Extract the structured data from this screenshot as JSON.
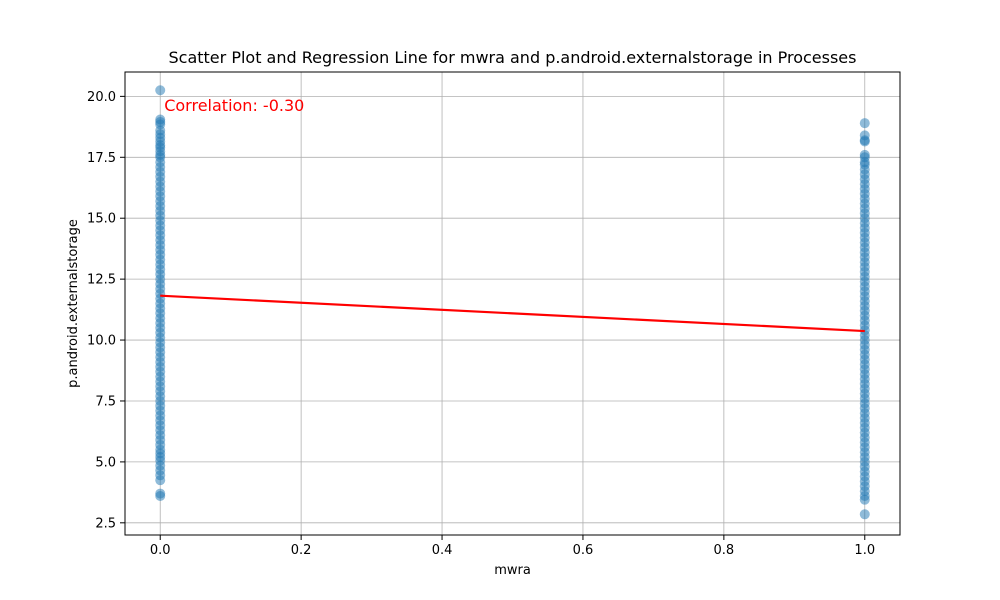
{
  "chart_data": {
    "type": "scatter",
    "title": "Scatter Plot and Regression Line for mwra and p.android.externalstorage in Processes",
    "xlabel": "mwra",
    "ylabel": "p.android.externalstorage",
    "xlim": [
      -0.05,
      1.05
    ],
    "ylim": [
      2.0,
      21.0
    ],
    "xticks": [
      0.0,
      0.2,
      0.4,
      0.6,
      0.8,
      1.0
    ],
    "xtick_labels": [
      "0.0",
      "0.2",
      "0.4",
      "0.6",
      "0.8",
      "1.0"
    ],
    "yticks": [
      2.5,
      5.0,
      7.5,
      10.0,
      12.5,
      15.0,
      17.5,
      20.0
    ],
    "ytick_labels": [
      "2.5",
      "5.0",
      "7.5",
      "10.0",
      "12.5",
      "15.0",
      "17.5",
      "20.0"
    ],
    "grid": true,
    "point_color": "#1f77b4",
    "line_color": "#ff0000",
    "annotation": {
      "text": "Correlation: -0.30",
      "x": 0.0,
      "y": 19.6,
      "color": "#ff0000"
    },
    "regression_line": {
      "x": [
        0.0,
        1.0
      ],
      "y": [
        11.82,
        10.37
      ]
    },
    "series": [
      {
        "x_value": 0.0,
        "y_values": [
          20.25,
          19.05,
          18.95,
          18.85,
          18.6,
          18.45,
          18.3,
          18.15,
          18.0,
          17.9,
          17.75,
          17.6,
          17.5,
          17.3,
          17.1,
          16.9,
          16.7,
          16.5,
          16.3,
          16.1,
          15.9,
          15.7,
          15.5,
          15.3,
          15.1,
          14.9,
          14.7,
          14.5,
          14.3,
          14.1,
          13.9,
          13.7,
          13.5,
          13.3,
          13.1,
          12.9,
          12.7,
          12.5,
          12.3,
          12.1,
          11.9,
          11.7,
          11.5,
          11.3,
          11.1,
          10.9,
          10.7,
          10.5,
          10.3,
          10.1,
          9.9,
          9.7,
          9.5,
          9.3,
          9.1,
          8.9,
          8.7,
          8.5,
          8.3,
          8.1,
          7.9,
          7.7,
          7.5,
          7.3,
          7.1,
          6.9,
          6.7,
          6.5,
          6.3,
          6.1,
          5.9,
          5.7,
          5.5,
          5.35,
          5.2,
          5.05,
          4.85,
          4.65,
          4.45,
          4.25,
          3.7,
          3.6
        ]
      },
      {
        "x_value": 1.0,
        "y_values": [
          18.9,
          18.4,
          18.2,
          18.15,
          17.6,
          17.5,
          17.3,
          17.2,
          17.0,
          16.8,
          16.6,
          16.4,
          16.2,
          16.0,
          15.8,
          15.6,
          15.4,
          15.2,
          15.0,
          14.8,
          14.6,
          14.4,
          14.2,
          14.0,
          13.8,
          13.6,
          13.4,
          13.2,
          13.0,
          12.8,
          12.6,
          12.4,
          12.2,
          12.0,
          11.8,
          11.6,
          11.4,
          11.2,
          11.0,
          10.8,
          10.6,
          10.4,
          10.2,
          10.0,
          9.8,
          9.6,
          9.4,
          9.2,
          9.0,
          8.8,
          8.6,
          8.4,
          8.2,
          8.0,
          7.8,
          7.6,
          7.4,
          7.2,
          7.0,
          6.8,
          6.6,
          6.4,
          6.2,
          6.0,
          5.8,
          5.6,
          5.4,
          5.2,
          5.0,
          4.8,
          4.6,
          4.4,
          4.2,
          4.0,
          3.8,
          3.6,
          3.45,
          2.85
        ]
      }
    ]
  }
}
